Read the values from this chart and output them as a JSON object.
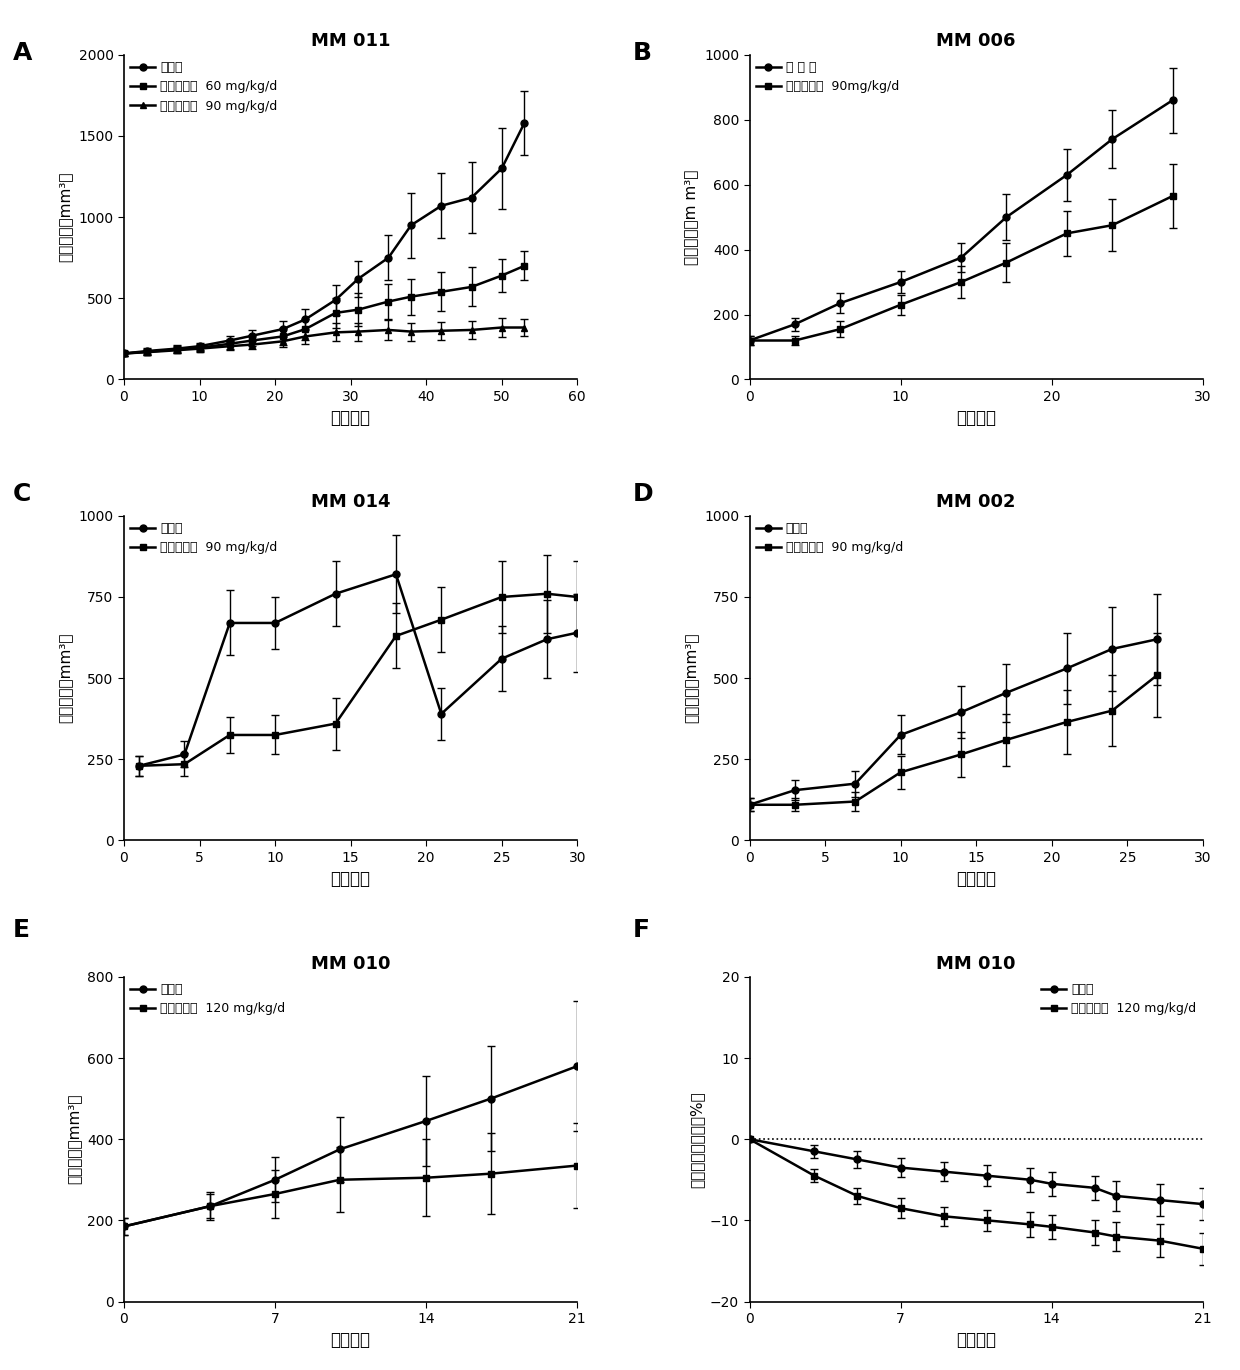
{
  "panel_A": {
    "title": "MM 011",
    "xlabel": "处理天数",
    "ylabel": "肿瘾体积（mm³）",
    "ylim": [
      0,
      2000
    ],
    "yticks": [
      0,
      500,
      1000,
      1500,
      2000
    ],
    "xlim": [
      0,
      60
    ],
    "xticks": [
      0,
      10,
      20,
      30,
      40,
      50,
      60
    ],
    "vehicle": {
      "x": [
        0,
        3,
        7,
        10,
        14,
        17,
        21,
        24,
        28,
        31,
        35,
        38,
        42,
        46,
        50,
        53
      ],
      "y": [
        160,
        175,
        190,
        205,
        240,
        270,
        310,
        370,
        490,
        620,
        750,
        950,
        1070,
        1120,
        1300,
        1580
      ],
      "yerr": [
        15,
        18,
        20,
        22,
        30,
        35,
        50,
        65,
        90,
        110,
        140,
        200,
        200,
        220,
        250,
        200
      ]
    },
    "drug60": {
      "x": [
        0,
        3,
        7,
        10,
        14,
        17,
        21,
        24,
        28,
        31,
        35,
        38,
        42,
        46,
        50,
        53
      ],
      "y": [
        160,
        170,
        185,
        195,
        220,
        240,
        265,
        310,
        410,
        430,
        480,
        510,
        540,
        570,
        640,
        700
      ],
      "yerr": [
        15,
        18,
        20,
        22,
        30,
        35,
        50,
        65,
        90,
        100,
        110,
        110,
        120,
        120,
        100,
        90
      ]
    },
    "drug90": {
      "x": [
        0,
        3,
        7,
        10,
        14,
        17,
        21,
        24,
        28,
        31,
        35,
        38,
        42,
        46,
        50,
        53
      ],
      "y": [
        160,
        168,
        180,
        190,
        205,
        215,
        235,
        265,
        290,
        295,
        305,
        295,
        300,
        305,
        320,
        320
      ],
      "yerr": [
        15,
        15,
        18,
        20,
        25,
        28,
        35,
        45,
        55,
        55,
        60,
        55,
        55,
        55,
        60,
        55
      ]
    },
    "legend": [
      "空载体",
      "帕布昔利布  60 mg/kg/d",
      "帕布昔利布  90 mg/kg/d"
    ]
  },
  "panel_B": {
    "title": "MM 006",
    "xlabel": "处理天数",
    "ylabel": "肿瘾体积（m m³）",
    "ylim": [
      0,
      1000
    ],
    "yticks": [
      0,
      200,
      400,
      600,
      800,
      1000
    ],
    "xlim": [
      0,
      30
    ],
    "xticks": [
      0,
      10,
      20,
      30
    ],
    "vehicle": {
      "x": [
        0,
        3,
        6,
        10,
        14,
        17,
        21,
        24,
        28
      ],
      "y": [
        120,
        170,
        235,
        300,
        375,
        500,
        630,
        740,
        860
      ],
      "yerr": [
        15,
        20,
        30,
        35,
        45,
        70,
        80,
        90,
        100
      ]
    },
    "drug90": {
      "x": [
        0,
        3,
        6,
        10,
        14,
        17,
        21,
        24,
        28
      ],
      "y": [
        120,
        120,
        155,
        230,
        300,
        360,
        450,
        475,
        565
      ],
      "yerr": [
        15,
        15,
        25,
        30,
        50,
        60,
        70,
        80,
        100
      ]
    },
    "legend": [
      "空 载 体",
      "帕布昔利布  90mg/kg/d"
    ]
  },
  "panel_C": {
    "title": "MM 014",
    "xlabel": "处理天数",
    "ylabel": "肿瘾体积（mm³）",
    "ylim": [
      0,
      1000
    ],
    "yticks": [
      0,
      250,
      500,
      750,
      1000
    ],
    "xlim": [
      0,
      30
    ],
    "xticks": [
      0,
      5,
      10,
      15,
      20,
      25,
      30
    ],
    "vehicle": {
      "x": [
        1,
        4,
        7,
        10,
        14,
        18,
        21,
        25,
        28,
        30
      ],
      "y": [
        230,
        265,
        670,
        670,
        760,
        820,
        390,
        560,
        620,
        640
      ],
      "yerr": [
        30,
        40,
        100,
        80,
        100,
        120,
        80,
        100,
        120,
        120
      ]
    },
    "drug90": {
      "x": [
        1,
        4,
        7,
        10,
        14,
        18,
        21,
        25,
        28,
        30
      ],
      "y": [
        230,
        235,
        325,
        325,
        360,
        630,
        680,
        750,
        760,
        750
      ],
      "yerr": [
        30,
        35,
        55,
        60,
        80,
        100,
        100,
        110,
        120,
        110
      ]
    },
    "legend": [
      "空载体",
      "帕布昔利布  90 mg/kg/d"
    ]
  },
  "panel_D": {
    "title": "MM 002",
    "xlabel": "处理天数",
    "ylabel": "肿瘾体积（mm³）",
    "ylim": [
      0,
      1000
    ],
    "yticks": [
      0,
      250,
      500,
      750,
      1000
    ],
    "xlim": [
      0,
      30
    ],
    "xticks": [
      0,
      5,
      10,
      15,
      20,
      25,
      30
    ],
    "vehicle": {
      "x": [
        0,
        3,
        7,
        10,
        14,
        17,
        21,
        24,
        27
      ],
      "y": [
        110,
        155,
        175,
        325,
        395,
        455,
        530,
        590,
        620
      ],
      "yerr": [
        20,
        30,
        40,
        60,
        80,
        90,
        110,
        130,
        140
      ]
    },
    "drug90": {
      "x": [
        0,
        3,
        7,
        10,
        14,
        17,
        21,
        24,
        27
      ],
      "y": [
        110,
        110,
        120,
        210,
        265,
        310,
        365,
        400,
        510
      ],
      "yerr": [
        20,
        20,
        30,
        50,
        70,
        80,
        100,
        110,
        130
      ]
    },
    "legend": [
      "空载体",
      "帕布昔利布  90 mg/kg/d"
    ]
  },
  "panel_E": {
    "title": "MM 010",
    "xlabel": "处理天数",
    "ylabel": "肿瘾体积（mm³）",
    "ylim": [
      0,
      800
    ],
    "yticks": [
      0,
      200,
      400,
      600,
      800
    ],
    "xlim": [
      0,
      21
    ],
    "xticks": [
      0,
      7,
      14,
      21
    ],
    "vehicle": {
      "x": [
        0,
        4,
        7,
        10,
        14,
        17,
        21
      ],
      "y": [
        185,
        235,
        300,
        375,
        445,
        500,
        580
      ],
      "yerr": [
        20,
        35,
        55,
        80,
        110,
        130,
        160
      ]
    },
    "drug120": {
      "x": [
        0,
        4,
        7,
        10,
        14,
        17,
        21
      ],
      "y": [
        185,
        235,
        265,
        300,
        305,
        315,
        335
      ],
      "yerr": [
        20,
        30,
        60,
        80,
        95,
        100,
        105
      ]
    },
    "legend": [
      "空载体",
      "帕布昔利布  120 mg/kg/d"
    ]
  },
  "panel_F": {
    "title": "MM 010",
    "xlabel": "处理天数",
    "ylabel": "体重变化百分比（%）",
    "ylim": [
      -20,
      20
    ],
    "yticks": [
      -20,
      -10,
      0,
      10,
      20
    ],
    "xlim": [
      0,
      21
    ],
    "xticks": [
      0,
      7,
      14,
      21
    ],
    "vehicle": {
      "x": [
        0,
        3,
        5,
        7,
        9,
        11,
        13,
        14,
        16,
        17,
        19,
        21
      ],
      "y": [
        0,
        -1.5,
        -2.5,
        -3.5,
        -4.0,
        -4.5,
        -5.0,
        -5.5,
        -6.0,
        -7.0,
        -7.5,
        -8.0
      ],
      "yerr": [
        0,
        0.8,
        1.0,
        1.2,
        1.2,
        1.3,
        1.5,
        1.5,
        1.5,
        1.8,
        2.0,
        2.0
      ]
    },
    "drug120": {
      "x": [
        0,
        3,
        5,
        7,
        9,
        11,
        13,
        14,
        16,
        17,
        19,
        21
      ],
      "y": [
        0,
        -4.5,
        -7.0,
        -8.5,
        -9.5,
        -10.0,
        -10.5,
        -10.8,
        -11.5,
        -12.0,
        -12.5,
        -13.5
      ],
      "yerr": [
        0,
        0.8,
        1.0,
        1.2,
        1.2,
        1.3,
        1.5,
        1.5,
        1.5,
        1.8,
        2.0,
        2.0
      ]
    },
    "legend": [
      "空载体",
      "帕布昔利布  120 mg/kg/d"
    ]
  }
}
